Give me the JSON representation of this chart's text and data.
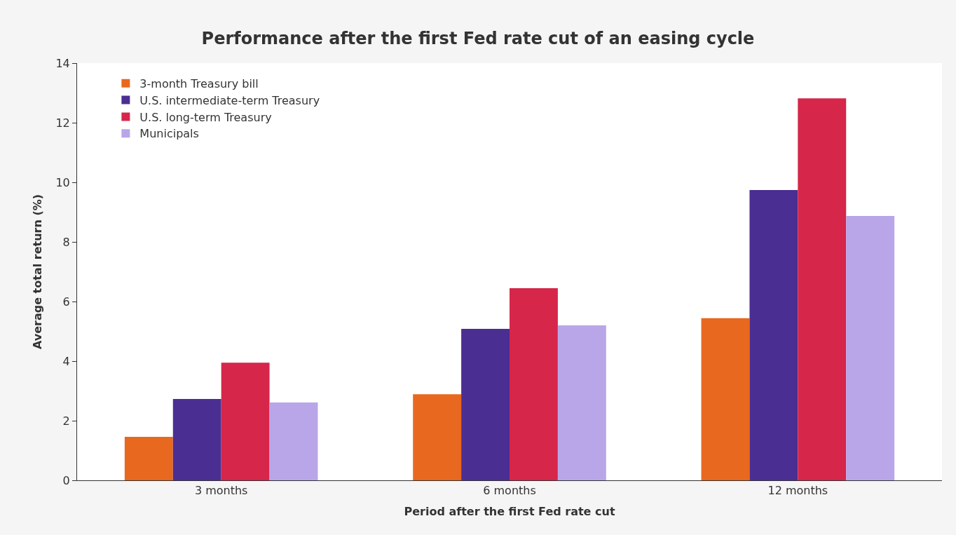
{
  "chart_data": {
    "type": "bar",
    "title": "Performance after the first Fed rate cut of an easing cycle",
    "xlabel": "Period after the first Fed rate cut",
    "ylabel": "Average total return (%)",
    "categories": [
      "3 months",
      "6 months",
      "12 months"
    ],
    "series": [
      {
        "name": "3-month Treasury bill",
        "color": "#e8681f",
        "values": [
          1.46,
          2.89,
          5.44
        ]
      },
      {
        "name": "U.S. intermediate-term Treasury",
        "color": "#4b2e92",
        "values": [
          2.73,
          5.08,
          9.74
        ]
      },
      {
        "name": "U.S. long-term Treasury",
        "color": "#d6264a",
        "values": [
          3.95,
          6.45,
          12.82
        ]
      },
      {
        "name": "Municipals",
        "color": "#b8a6e8",
        "values": [
          2.61,
          5.2,
          8.87
        ]
      }
    ],
    "ylim": [
      0,
      14
    ],
    "yticks": [
      0,
      2,
      4,
      6,
      8,
      10,
      12,
      14
    ],
    "legend": "top left"
  }
}
